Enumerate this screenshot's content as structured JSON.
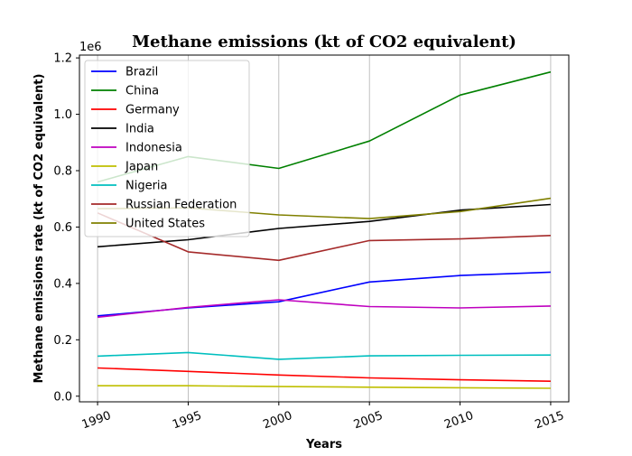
{
  "chart_data": {
    "type": "line",
    "title": "Methane emissions (kt of CO2 equivalent)",
    "xlabel": "Years",
    "ylabel": "Methane emissions rate (kt of CO2 equivalent)",
    "y_offset_label": "1e6",
    "x": [
      1990,
      1995,
      2000,
      2005,
      2010,
      2015
    ],
    "x_ticks": [
      "1990",
      "1995",
      "2000",
      "2005",
      "2010",
      "2015"
    ],
    "y_ticks": [
      "0.0",
      "0.2",
      "0.4",
      "0.6",
      "0.8",
      "1.0",
      "1.2"
    ],
    "y_tick_values": [
      0,
      0.2,
      0.4,
      0.6,
      0.8,
      1.0,
      1.2
    ],
    "xlim": [
      1989,
      2016
    ],
    "ylim": [
      -0.02,
      1.21
    ],
    "grid": "vertical",
    "legend_position": "top-left",
    "series": [
      {
        "name": "Brazil",
        "color": "#0000ff",
        "values": [
          0.285,
          0.313,
          0.335,
          0.405,
          0.428,
          0.44
        ]
      },
      {
        "name": "China",
        "color": "#008000",
        "values": [
          0.76,
          0.85,
          0.808,
          0.905,
          1.068,
          1.15
        ]
      },
      {
        "name": "Germany",
        "color": "#ff0000",
        "values": [
          0.1,
          0.088,
          0.075,
          0.065,
          0.058,
          0.053
        ]
      },
      {
        "name": "India",
        "color": "#000000",
        "values": [
          0.53,
          0.555,
          0.595,
          0.62,
          0.66,
          0.68
        ]
      },
      {
        "name": "Indonesia",
        "color": "#bf00bf",
        "values": [
          0.28,
          0.315,
          0.342,
          0.318,
          0.313,
          0.32
        ]
      },
      {
        "name": "Japan",
        "color": "#bfbf00",
        "values": [
          0.037,
          0.037,
          0.034,
          0.032,
          0.03,
          0.028
        ]
      },
      {
        "name": "Nigeria",
        "color": "#00bfbf",
        "values": [
          0.142,
          0.155,
          0.131,
          0.143,
          0.145,
          0.146
        ]
      },
      {
        "name": "Russian Federation",
        "color": "#a52a2a",
        "values": [
          0.65,
          0.512,
          0.482,
          0.552,
          0.558,
          0.57
        ]
      },
      {
        "name": "United States",
        "color": "#808000",
        "values": [
          0.665,
          0.668,
          0.643,
          0.63,
          0.655,
          0.702
        ]
      }
    ]
  }
}
